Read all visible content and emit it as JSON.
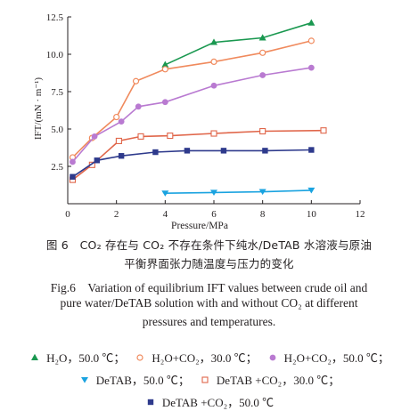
{
  "chart_data": {
    "type": "line",
    "xlabel": "Pressure/MPa",
    "ylabel": "IFT/(mN · m⁻¹)",
    "xlim": [
      0,
      12
    ],
    "ylim": [
      0,
      12.5
    ],
    "x_ticks": [
      "0",
      "2",
      "4",
      "6",
      "8",
      "10",
      "12"
    ],
    "y_ticks": [
      "2.5",
      "5.0",
      "7.5",
      "10.0",
      "12.5"
    ],
    "series": [
      {
        "name": "H₂O，50.0 ℃",
        "marker": "triangle-up-filled",
        "color": "#1a9850",
        "x": [
          4.0,
          6.0,
          8.0,
          10.0
        ],
        "y": [
          9.3,
          10.8,
          11.1,
          12.1
        ]
      },
      {
        "name": "H₂O+CO₂，30.0 ℃",
        "marker": "circle-open",
        "color": "#f08a5d",
        "x": [
          0.2,
          1.0,
          2.0,
          2.8,
          4.0,
          6.0,
          8.0,
          10.0
        ],
        "y": [
          3.1,
          4.4,
          5.8,
          8.2,
          9.0,
          9.5,
          10.1,
          10.9
        ]
      },
      {
        "name": "H₂O+CO₂，50.0 ℃",
        "marker": "circle-filled",
        "color": "#b97ad1",
        "x": [
          0.2,
          1.1,
          2.2,
          2.9,
          4.0,
          6.0,
          8.0,
          10.0
        ],
        "y": [
          2.8,
          4.5,
          5.5,
          6.5,
          6.8,
          7.9,
          8.6,
          9.1
        ]
      },
      {
        "name": "DeTAB，50.0 ℃",
        "marker": "triangle-down-filled",
        "color": "#1aa3e0",
        "x": [
          4.0,
          6.0,
          8.0,
          10.0
        ],
        "y": [
          0.7,
          0.75,
          0.8,
          0.9
        ]
      },
      {
        "name": "DeTAB +CO₂，30.0 ℃",
        "marker": "square-open",
        "color": "#e0664a",
        "x": [
          0.2,
          1.0,
          2.1,
          3.0,
          4.2,
          6.0,
          8.0,
          10.5
        ],
        "y": [
          1.6,
          2.6,
          4.2,
          4.5,
          4.55,
          4.7,
          4.85,
          4.9
        ]
      },
      {
        "name": "DeTAB +CO₂，50.0 ℃",
        "marker": "square-filled",
        "color": "#2e3a8c",
        "x": [
          0.2,
          1.2,
          2.2,
          3.6,
          4.9,
          6.4,
          8.1,
          10.0
        ],
        "y": [
          1.8,
          2.9,
          3.2,
          3.45,
          3.55,
          3.55,
          3.55,
          3.6
        ]
      }
    ],
    "grid": false,
    "legend_position": "bottom"
  },
  "caption": {
    "cn_line1": "图 6　CO₂ 存在与 CO₂ 不存在条件下纯水/DeTAB 水溶液与原油",
    "cn_line2": "平衡界面张力随温度与压力的变化",
    "en_line1": "Fig.6　Variation of equilibrium IFT values between crude oil and",
    "en_line2": "pure water/DeTAB solution with and without CO₂ at different",
    "en_line3": "pressures and temperatures."
  },
  "legend": {
    "rows": [
      [
        {
          "label": "H₂O，50.0 ℃；",
          "series": 0
        },
        {
          "label": "H₂O+CO₂，30.0 ℃；",
          "series": 1
        },
        {
          "label": "H₂O+CO₂，50.0 ℃；",
          "series": 2
        }
      ],
      [
        {
          "label": "DeTAB，50.0 ℃；",
          "series": 3
        },
        {
          "label": "DeTAB +CO₂，30.0 ℃；",
          "series": 4
        }
      ],
      [
        {
          "label": "DeTAB +CO₂，50.0 ℃",
          "series": 5
        }
      ]
    ]
  }
}
